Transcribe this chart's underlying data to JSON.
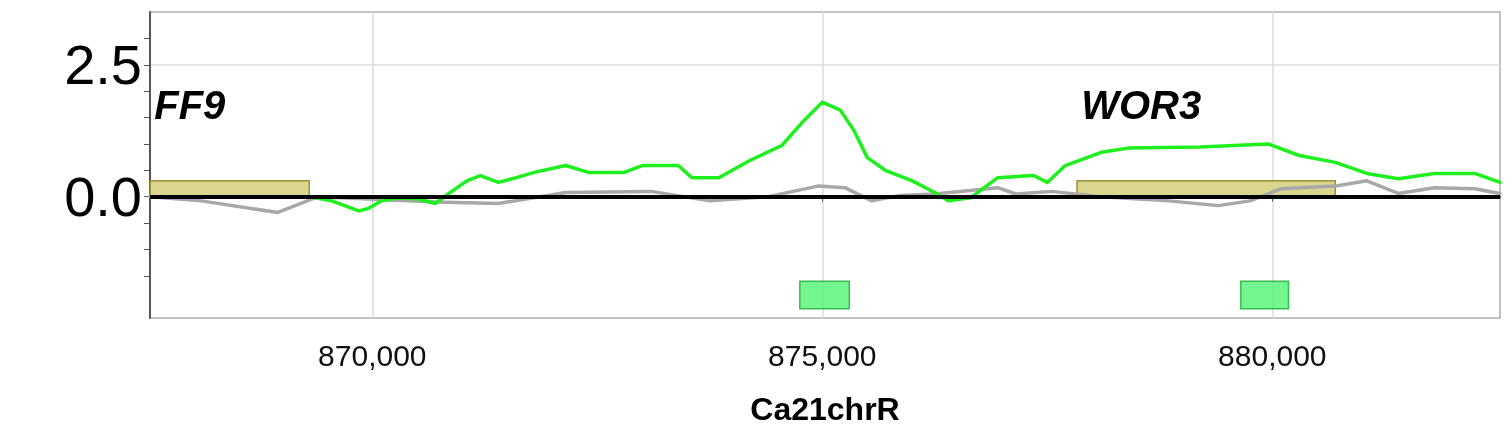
{
  "chart_data": {
    "type": "line",
    "xlabel": "Ca21chrR",
    "xlim": [
      867530,
      882530
    ],
    "ylim": [
      -2.3,
      3.5
    ],
    "xticks": [
      {
        "value": 870000,
        "label": "870,000"
      },
      {
        "value": 875000,
        "label": "875,000"
      },
      {
        "value": 880000,
        "label": "880,000"
      }
    ],
    "yticks": [
      {
        "value": -1.5,
        "label": null
      },
      {
        "value": -1,
        "label": null
      },
      {
        "value": -0.5,
        "label": null
      },
      {
        "value": 0,
        "label": "0.0"
      },
      {
        "value": 0.5,
        "label": null
      },
      {
        "value": 1,
        "label": null
      },
      {
        "value": 1.5,
        "label": null
      },
      {
        "value": 2,
        "label": null
      },
      {
        "value": 2.5,
        "label": "2.5"
      },
      {
        "value": 3,
        "label": null
      }
    ],
    "grid": true,
    "marker": "none",
    "line_style": "solid",
    "series": [
      {
        "color": "#a8a8a8",
        "x": [
          867530,
          868100,
          868950,
          869400,
          870700,
          871400,
          872150,
          873100,
          873750,
          874400,
          874950,
          875250,
          875550,
          875850,
          876250,
          876950,
          877150,
          877550,
          878100,
          878850,
          879400,
          879750,
          880100,
          880700,
          881050,
          881400,
          881800,
          882250,
          882530
        ],
        "values": [
          0,
          -0.08,
          -0.3,
          0,
          -0.1,
          -0.13,
          0.08,
          0.1,
          -0.08,
          0,
          0.2,
          0.17,
          -0.08,
          0.02,
          0.05,
          0.17,
          0.05,
          0.1,
          0,
          -0.08,
          -0.17,
          -0.08,
          0.15,
          0.2,
          0.3,
          0.06,
          0.17,
          0.15,
          0.06
        ]
      },
      {
        "color": "#1ef01e",
        "x": [
          869300,
          869550,
          869850,
          869950,
          870100,
          870300,
          870500,
          870700,
          870850,
          871050,
          871200,
          871400,
          871600,
          871800,
          872150,
          872400,
          872800,
          873000,
          873400,
          873550,
          873850,
          874200,
          874550,
          874800,
          875000,
          875200,
          875350,
          875500,
          875700,
          876000,
          876250,
          876400,
          876650,
          876950,
          877350,
          877500,
          877700,
          878100,
          878400,
          879200,
          879950,
          880300,
          880700,
          881050,
          881400,
          881800,
          882250,
          882530
        ],
        "values": [
          0,
          -0.08,
          -0.27,
          -0.23,
          -0.08,
          -0.02,
          -0.04,
          -0.13,
          0.06,
          0.3,
          0.4,
          0.27,
          0.36,
          0.46,
          0.59,
          0.46,
          0.46,
          0.59,
          0.59,
          0.36,
          0.36,
          0.69,
          0.97,
          1.45,
          1.79,
          1.64,
          1.26,
          0.74,
          0.5,
          0.3,
          0.08,
          -0.08,
          -0.02,
          0.36,
          0.4,
          0.27,
          0.59,
          0.84,
          0.92,
          0.94,
          1.0,
          0.78,
          0.65,
          0.44,
          0.34,
          0.44,
          0.44,
          0.27
        ]
      }
    ],
    "ref_lines": [
      {
        "axis": "y",
        "value": 0,
        "color": "#000000"
      }
    ],
    "bands": [
      {
        "axis": "x",
        "from": 867530,
        "to": 869300,
        "label": "FF9",
        "color": "#d4cf7a"
      },
      {
        "axis": "x",
        "from": 877830,
        "to": 880700,
        "label": "WOR3",
        "color": "#d4cf7a"
      },
      {
        "axis": "x",
        "from": 874750,
        "to": 875300,
        "color": "#5cf57a"
      },
      {
        "axis": "x",
        "from": 879650,
        "to": 880180,
        "color": "#5cf57a"
      }
    ]
  }
}
